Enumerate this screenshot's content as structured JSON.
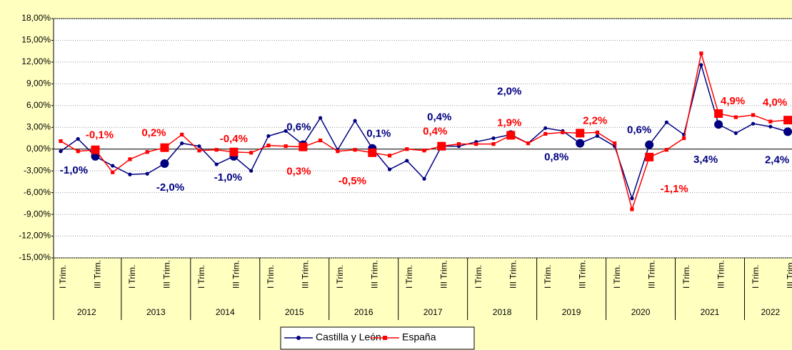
{
  "chart_data": {
    "type": "line",
    "categories": [
      "I Trim.",
      null,
      "III Trim.",
      null,
      "I Trim.",
      null,
      "III Trim.",
      null,
      "I Trim.",
      null,
      "III Trim.",
      null,
      "I Trim.",
      null,
      "III Trim.",
      null,
      "I Trim.",
      null,
      "III Trim.",
      null,
      "I Trim.",
      null,
      "III Trim.",
      null,
      "I Trim.",
      null,
      "III Trim.",
      null,
      "I Trim.",
      null,
      "III Trim.",
      null,
      "I Trim.",
      null,
      "III Trim.",
      null,
      "I Trim.",
      null,
      "III Trim.",
      null,
      "I Trim.",
      null,
      "III Trim."
    ],
    "years": [
      "2012",
      "2013",
      "2014",
      "2015",
      "2016",
      "2017",
      "2018",
      "2019",
      "2020",
      "2021",
      "2022"
    ],
    "series": [
      {
        "name": "Castilla y León",
        "color": "#000080",
        "values": [
          -0.3,
          1.4,
          -1.0,
          -2.3,
          -3.5,
          -3.4,
          -2.0,
          0.8,
          0.4,
          -2.1,
          -1.0,
          -3.0,
          1.8,
          2.5,
          0.6,
          4.3,
          -0.1,
          3.9,
          0.1,
          -2.8,
          -1.6,
          -4.1,
          0.4,
          0.4,
          1.0,
          1.5,
          2.0,
          0.8,
          2.9,
          2.5,
          0.8,
          1.8,
          0.4,
          -6.8,
          0.6,
          3.7,
          2.0,
          11.6,
          3.4,
          2.2,
          3.5,
          3.1,
          2.4
        ],
        "value_labels": [
          null,
          null,
          "-1,0%",
          null,
          null,
          null,
          "-2,0%",
          null,
          null,
          null,
          "-1,0%",
          null,
          null,
          null,
          "0,6%",
          null,
          null,
          null,
          "0,1%",
          null,
          null,
          null,
          "0,4%",
          null,
          null,
          null,
          "2,0%",
          null,
          null,
          null,
          "0,8%",
          null,
          null,
          null,
          "0,6%",
          null,
          null,
          null,
          "3,4%",
          null,
          null,
          null,
          "2,4%"
        ]
      },
      {
        "name": "España",
        "color": "#ff0000",
        "values": [
          1.1,
          -0.3,
          -0.1,
          -3.2,
          -1.4,
          -0.4,
          0.2,
          2.0,
          -0.2,
          -0.1,
          -0.4,
          -0.5,
          0.5,
          0.4,
          0.3,
          1.2,
          -0.3,
          -0.1,
          -0.5,
          -0.9,
          0.0,
          -0.2,
          0.4,
          0.7,
          0.7,
          0.7,
          1.9,
          0.8,
          2.1,
          2.3,
          2.2,
          2.3,
          0.8,
          -8.3,
          -1.1,
          -0.1,
          1.5,
          13.2,
          4.9,
          4.4,
          4.7,
          3.8,
          4.0
        ],
        "value_labels": [
          null,
          null,
          "-0,1%",
          null,
          null,
          null,
          "0,2%",
          null,
          null,
          null,
          "-0,4%",
          null,
          null,
          null,
          "0,3%",
          null,
          null,
          null,
          "-0,5%",
          null,
          null,
          null,
          "0,4%",
          null,
          null,
          null,
          "1,9%",
          null,
          null,
          null,
          "2,2%",
          null,
          null,
          null,
          "-1,1%",
          null,
          null,
          null,
          "4,9%",
          null,
          null,
          null,
          "4,0%"
        ]
      }
    ],
    "ylim": [
      -15,
      18
    ],
    "yticks": [
      {
        "value": -15,
        "label": "-15,00%"
      },
      {
        "value": -12,
        "label": "-12,00%"
      },
      {
        "value": -9,
        "label": "-9,00%"
      },
      {
        "value": -6,
        "label": "-6,00%"
      },
      {
        "value": -3,
        "label": "-3,00%"
      },
      {
        "value": 0,
        "label": "0,00%"
      },
      {
        "value": 3,
        "label": "3,00%"
      },
      {
        "value": 6,
        "label": "6,00%"
      },
      {
        "value": 9,
        "label": "9,00%"
      },
      {
        "value": 12,
        "label": "12,00%"
      },
      {
        "value": 15,
        "label": "15,00%"
      },
      {
        "value": 18,
        "label": "18,00%"
      }
    ],
    "grid": true,
    "legend": "bottom"
  }
}
